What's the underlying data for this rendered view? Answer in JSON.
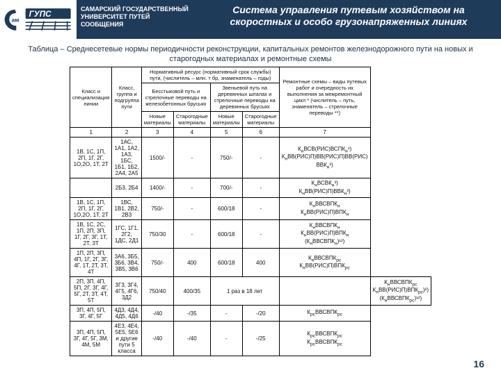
{
  "header": {
    "university_line1": "САМАРСКИЙ ГОСУДАРСТВЕННЫЙ",
    "university_line2": "УНИВЕРСИТЕТ ПУТЕЙ СООБЩЕНИЯ",
    "title": "Система управления путевым хозяйством на скоростных и особо грузонапряженных линиях",
    "logo_primary": "#1f3b5a",
    "logo_accent": "#ffffff"
  },
  "caption": "Таблица – Среднесетевые нормы периодичности реконструкции, капитальных ремонтов железнодорожного пути на новых и старогодных материалах и ремонтные схемы",
  "page_number": "16",
  "table": {
    "head": {
      "c1": "Класс и специализация линии",
      "c2": "Класс, группа и подгруппа пути",
      "norm": "Нормативный ресурс (нормативный срок службы) пути, (числитель – млн. т бр, знаменатель – годы)",
      "bs": "Бесстыковой путь и стрелочные переводы на железобетонных брусьях",
      "zv": "Звеньевой путь на деревянных шпалах и стрелочные переводы на деревянных брусьях",
      "rem": "Ремонтные схемы – виды путевых работ и очередность их выполнения за межремонтный цикл * (числитель – путь, знаменатель – стрелочные переводы **)",
      "new": "Новые материалы",
      "old": "Старогодные материалы"
    },
    "numrow": [
      "1",
      "2",
      "3",
      "4",
      "5",
      "6",
      "7"
    ],
    "rows": [
      {
        "c1": "1В, 1С, 1П, 2П, 1Г, 2Г, 1О,2О, 1Т, 2Т",
        "c2": "1АС, 1А1, 1А2, 1А3, 1БС, 1Б1, 1Б2, 2А4, 2А5",
        "c3": "1500/-",
        "c4": "-",
        "c5": "750/-",
        "c6": "-",
        "c7": "КнВСВ(РИС)ВСПКн¹)\nКнВВ(РИС)П)ВВ(РИС)П)ВВ(РИС) ВВКн²)"
      },
      {
        "c1": "",
        "c2": "2Б3, 2Б4",
        "c3": "1400/-",
        "c4": "-",
        "c5": "700/-",
        "c6": "-",
        "c7": "КнВСВКн³)\nКнВВ(РИС)П)ВВКн³)"
      },
      {
        "c1": "1В, 1С, 1П, 2П, 1Г, 2Г, 1О,2О, 1Т, 2Т",
        "c2": "1ВС, 1В1, 2В2, 2В3",
        "c3": "750/-",
        "c4": "-",
        "c5": "600/18",
        "c6": "-",
        "c7": "КнВВСВПКн\nКнВВ(РИС)П)ВПКн"
      },
      {
        "c1": "1В, 1С, 2С, 1П, 2П, 3П, 1Г, 2Г, 3Г, 1Т, 2Т, 3Т",
        "c2": "1ГС, 1Г1, 2Г2, 1ДС, 2Д1",
        "c3": "750/30",
        "c4": "-",
        "c5": "600/18",
        "c6": "-",
        "c7": "КнВВСВПКн\nКнВВ(РИС)П)ВПКн\n(КнВВСВПКн)¹²)"
      },
      {
        "c1": "1П, 2П, 3П, 4П, 1Г, 2Г, 3Г, 4Г, 1Т, 2Т, 3Т, 4Т",
        "c2": "3А6, 3Б5, 3Б6, 3В4, 3В5, 3В6",
        "c3": "750/-",
        "c4": "400",
        "c5": "600/18",
        "c6": "400",
        "c7": "КнВВСВПКрс\nКнВВ(РИС)П)ВПКрс"
      },
      {
        "c1": "2П, 3П, 4П, 5П, 2Г, 3Г, 4Г, 5Г, 2Т, 3Т, 4Т, 5Т",
        "c2": "3Г3, 3Г4, 4Г5, 4Г6, 3Д2",
        "c3": "750/40",
        "c4": "400/35",
        "c5": "1 раз в 18 лет",
        "c6": "",
        "c7": "КнВВСВПКрс\nКнВВ(РИС)П)ВПКрс)²)\n(КнВВСВПКрс)¹²)"
      },
      {
        "c1": "3П, 4П, 5П, 3Г, 4Г, 5Г",
        "c2": "4Д3, 4Д4, 4Д5, 4Д6",
        "c3": "-/40",
        "c4": "-/35",
        "c5": "-",
        "c6": "-/20",
        "c7": "КрсВВСВПКрс"
      },
      {
        "c1": "3П, 4П, 5П, 3Г, 4Г, 5Г, 3М, 4М, 5М",
        "c2": "4Е3, 4Е4, 5Е5, 5Е6 и другие пути 5 класса",
        "c3": "-/40",
        "c4": "-/40",
        "c5": "-",
        "c6": "-/25",
        "c7": "КрсВВСВПКрс\nКрсВВСВПКрс"
      }
    ]
  }
}
